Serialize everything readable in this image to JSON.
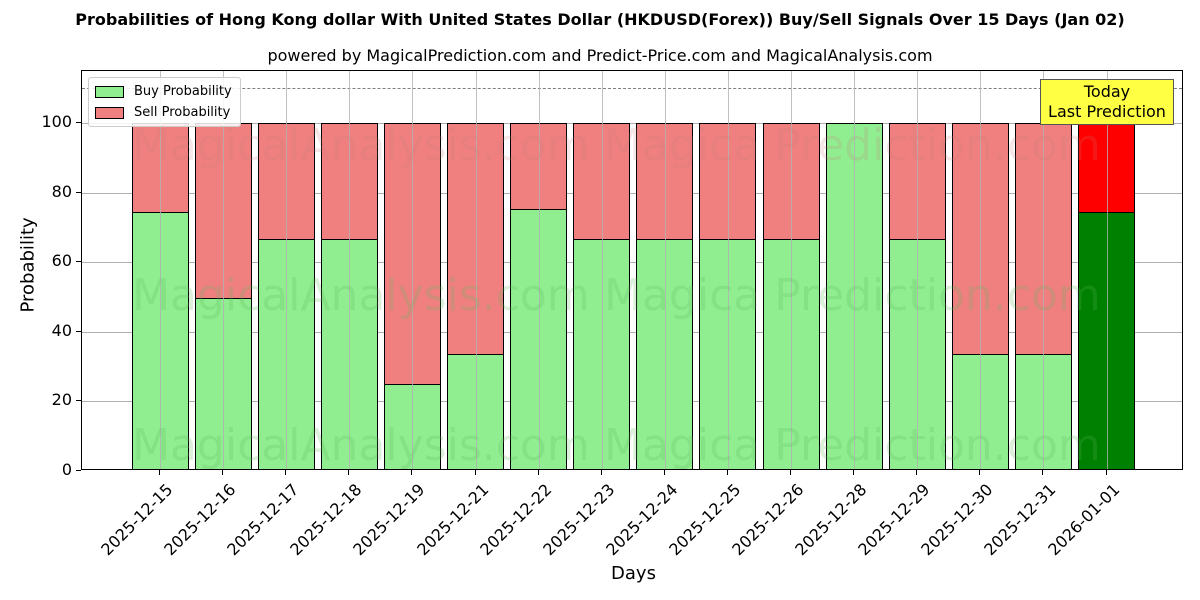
{
  "header": {
    "title": "Probabilities of Hong Kong dollar With United States Dollar (HKDUSD(Forex)) Buy/Sell Signals Over 15 Days (Jan 02)",
    "subtitle": "powered by MagicalPrediction.com and Predict-Price.com and MagicalAnalysis.com"
  },
  "legend": {
    "buy": "Buy Probability",
    "sell": "Sell Probability"
  },
  "annotation": {
    "line1": "Today",
    "line2": "Last Prediction"
  },
  "watermarks": [
    "MagicalAnalysis.com",
    "MagicalPrediction.com"
  ],
  "colors": {
    "buy": "#90ee90",
    "sell": "#f08080",
    "today_buy": "#008000",
    "today_sell": "#ff0000",
    "annotation_bg": "#ffff44"
  },
  "chart_data": {
    "type": "bar",
    "stacked": true,
    "title": "Probabilities of Hong Kong dollar With United States Dollar (HKDUSD(Forex)) Buy/Sell Signals Over 15 Days (Jan 02)",
    "subtitle": "powered by MagicalPrediction.com and Predict-Price.com and MagicalAnalysis.com",
    "xlabel": "Days",
    "ylabel": "Probability",
    "ylim": [
      0,
      115
    ],
    "yticks": [
      0,
      20,
      40,
      60,
      80,
      100
    ],
    "grid": true,
    "legend_position": "upper left",
    "reference_line": 110,
    "categories": [
      "2025-12-15",
      "2025-12-16",
      "2025-12-17",
      "2025-12-18",
      "2025-12-19",
      "2025-12-21",
      "2025-12-22",
      "2025-12-23",
      "2025-12-24",
      "2025-12-25",
      "2025-12-26",
      "2025-12-28",
      "2025-12-29",
      "2025-12-30",
      "2025-12-31",
      "2026-01-01"
    ],
    "series": [
      {
        "name": "Buy Probability",
        "values": [
          74.6,
          49.7,
          66.8,
          66.8,
          24.9,
          33.6,
          75.4,
          66.8,
          66.8,
          66.8,
          66.8,
          100,
          66.8,
          33.6,
          33.6,
          74.6
        ]
      },
      {
        "name": "Sell Probability",
        "values": [
          25.4,
          50.3,
          33.2,
          33.2,
          75.1,
          66.4,
          24.6,
          33.2,
          33.2,
          33.2,
          33.2,
          0,
          33.2,
          66.4,
          66.4,
          25.4
        ]
      }
    ],
    "annotations": [
      "Today Last Prediction"
    ]
  }
}
